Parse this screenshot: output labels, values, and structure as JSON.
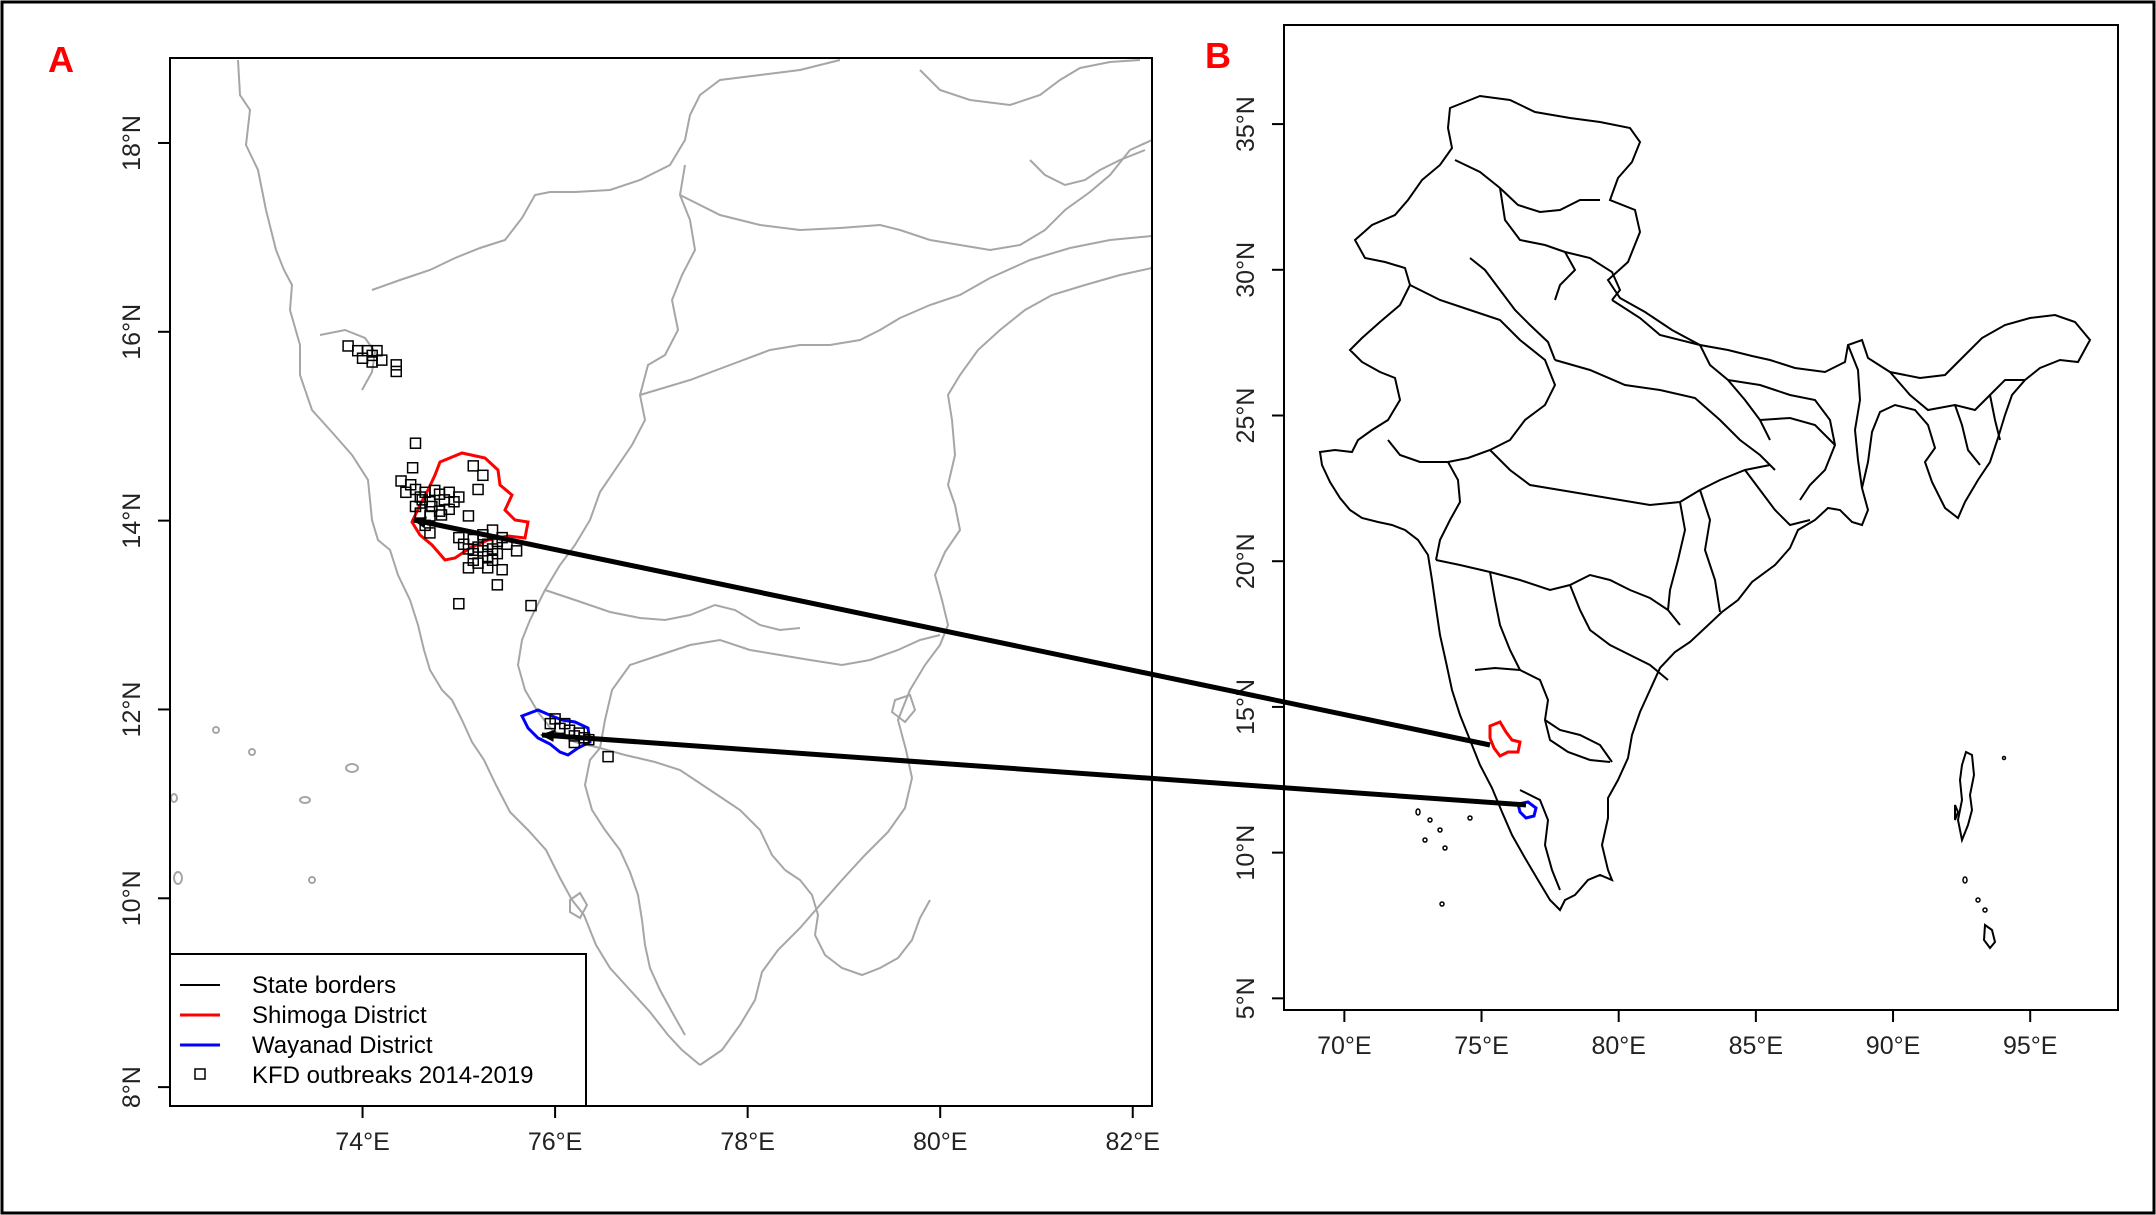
{
  "panels": {
    "a": {
      "letter": "A",
      "xticks": [
        "74°E",
        "76°E",
        "78°E",
        "80°E",
        "82°E"
      ],
      "yticks": [
        "8°N",
        "10°N",
        "12°N",
        "14°N",
        "16°N",
        "18°N"
      ],
      "xlim": [
        72.0,
        82.2
      ],
      "ylim": [
        7.8,
        18.9
      ],
      "legend": {
        "position": "bottom-left",
        "items": [
          {
            "label": "State borders",
            "color": "#000000",
            "symbol": "line"
          },
          {
            "label": "Shimoga District",
            "color": "#ff0000",
            "symbol": "line"
          },
          {
            "label": "Wayanad District",
            "color": "#0000ff",
            "symbol": "line"
          },
          {
            "label": "KFD outbreaks 2014-2019",
            "color": "#000000",
            "symbol": "square"
          }
        ]
      }
    },
    "b": {
      "letter": "B",
      "xticks": [
        "70°E",
        "75°E",
        "80°E",
        "85°E",
        "90°E",
        "95°E"
      ],
      "yticks": [
        "5°N",
        "10°N",
        "15°N",
        "20°N",
        "25°N",
        "30°N",
        "35°N"
      ],
      "xlim": [
        67.8,
        98.2
      ],
      "ylim": [
        4.6,
        38.4
      ]
    }
  },
  "colors": {
    "state_borders_a": "#a6a6a6",
    "state_borders_b": "#000000",
    "shimoga": "#ff0000",
    "wayanad": "#0000ff",
    "outbreaks": "#000000",
    "arrows": "#000000"
  },
  "outbreak_points": [
    [
      73.85,
      15.85
    ],
    [
      73.95,
      15.8
    ],
    [
      74.05,
      15.8
    ],
    [
      74.1,
      15.75
    ],
    [
      74.15,
      15.8
    ],
    [
      74.0,
      15.72
    ],
    [
      74.2,
      15.7
    ],
    [
      74.1,
      15.68
    ],
    [
      74.35,
      15.65
    ],
    [
      74.35,
      15.58
    ],
    [
      74.55,
      14.82
    ],
    [
      74.4,
      14.42
    ],
    [
      74.5,
      14.38
    ],
    [
      74.45,
      14.3
    ],
    [
      74.55,
      14.33
    ],
    [
      74.6,
      14.25
    ],
    [
      74.65,
      14.3
    ],
    [
      74.7,
      14.2
    ],
    [
      74.75,
      14.32
    ],
    [
      74.8,
      14.28
    ],
    [
      74.85,
      14.22
    ],
    [
      74.9,
      14.3
    ],
    [
      74.95,
      14.2
    ],
    [
      75.0,
      14.25
    ],
    [
      74.55,
      14.15
    ],
    [
      74.6,
      14.08
    ],
    [
      74.7,
      14.05
    ],
    [
      74.8,
      14.1
    ],
    [
      74.9,
      14.12
    ],
    [
      74.52,
      14.56
    ],
    [
      74.62,
      14.22
    ],
    [
      74.72,
      14.15
    ],
    [
      74.82,
      14.06
    ],
    [
      75.15,
      14.58
    ],
    [
      75.25,
      14.48
    ],
    [
      75.2,
      14.33
    ],
    [
      75.1,
      14.05
    ],
    [
      74.65,
      13.95
    ],
    [
      74.7,
      13.87
    ],
    [
      75.0,
      13.82
    ],
    [
      75.05,
      13.75
    ],
    [
      75.1,
      13.7
    ],
    [
      75.15,
      13.65
    ],
    [
      75.2,
      13.72
    ],
    [
      75.25,
      13.68
    ],
    [
      75.3,
      13.75
    ],
    [
      75.35,
      13.7
    ],
    [
      75.4,
      13.78
    ],
    [
      75.45,
      13.82
    ],
    [
      75.5,
      13.75
    ],
    [
      75.15,
      13.58
    ],
    [
      75.2,
      13.55
    ],
    [
      75.3,
      13.62
    ],
    [
      75.35,
      13.58
    ],
    [
      75.4,
      13.65
    ],
    [
      75.25,
      13.85
    ],
    [
      75.35,
      13.9
    ],
    [
      75.45,
      13.48
    ],
    [
      75.6,
      13.68
    ],
    [
      75.1,
      13.5
    ],
    [
      75.4,
      13.32
    ],
    [
      75.0,
      13.12
    ],
    [
      75.75,
      13.1
    ],
    [
      75.15,
      13.8
    ],
    [
      75.3,
      13.5
    ],
    [
      75.95,
      11.85
    ],
    [
      76.0,
      11.9
    ],
    [
      76.05,
      11.8
    ],
    [
      76.1,
      11.85
    ],
    [
      76.15,
      11.78
    ],
    [
      76.2,
      11.72
    ],
    [
      76.25,
      11.75
    ],
    [
      76.3,
      11.7
    ],
    [
      76.2,
      11.65
    ],
    [
      76.35,
      11.68
    ],
    [
      76.55,
      11.5
    ]
  ]
}
